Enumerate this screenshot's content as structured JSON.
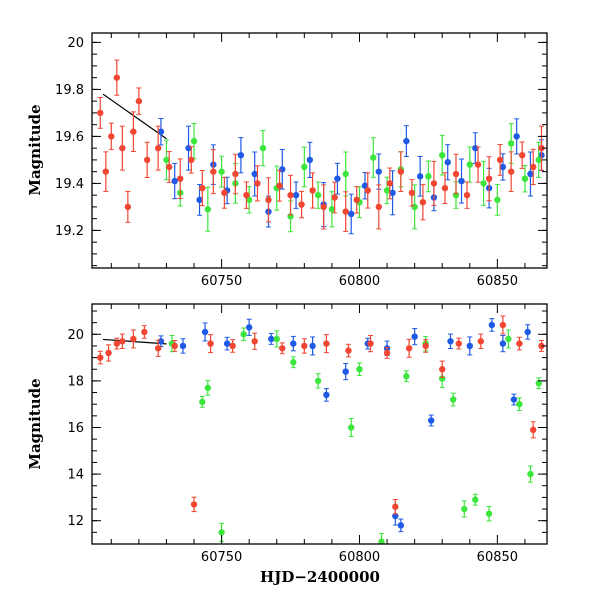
{
  "chart_data": [
    {
      "type": "scatter",
      "panel": "top",
      "title": "",
      "xlabel": "",
      "ylabel": "Magnitude",
      "xlim": [
        60703,
        60868
      ],
      "ylim": [
        20.04,
        19.04
      ],
      "y_inverted": true,
      "xticks": [
        60750,
        60800,
        60850
      ],
      "yticks": [
        19.2,
        19.4,
        19.6,
        19.8,
        20
      ],
      "ytick_labels": [
        "19.2",
        "19.4",
        "19.6",
        "19.8",
        "20"
      ],
      "error_bars": true,
      "grid": false,
      "series": [
        {
          "color": "#1e5ae6",
          "points": [
            [
              60728,
              19.62
            ],
            [
              60733,
              19.41
            ],
            [
              60738,
              19.55
            ],
            [
              60742,
              19.33
            ],
            [
              60747,
              19.48
            ],
            [
              60752,
              19.37
            ],
            [
              60757,
              19.52
            ],
            [
              60762,
              19.44
            ],
            [
              60767,
              19.28
            ],
            [
              60772,
              19.46
            ],
            [
              60777,
              19.35
            ],
            [
              60782,
              19.5
            ],
            [
              60787,
              19.31
            ],
            [
              60792,
              19.42
            ],
            [
              60797,
              19.27
            ],
            [
              60802,
              19.39
            ],
            [
              60807,
              19.45
            ],
            [
              60812,
              19.36
            ],
            [
              60817,
              19.58
            ],
            [
              60822,
              19.43
            ],
            [
              60827,
              19.34
            ],
            [
              60832,
              19.49
            ],
            [
              60837,
              19.41
            ],
            [
              60842,
              19.55
            ],
            [
              60847,
              19.38
            ],
            [
              60852,
              19.47
            ],
            [
              60857,
              19.6
            ],
            [
              60862,
              19.44
            ],
            [
              60866,
              19.52
            ]
          ]
        },
        {
          "color": "#3ce63c",
          "points": [
            [
              60730,
              19.5
            ],
            [
              60735,
              19.36
            ],
            [
              60740,
              19.58
            ],
            [
              60745,
              19.29
            ],
            [
              60750,
              19.45
            ],
            [
              60755,
              19.4
            ],
            [
              60760,
              19.33
            ],
            [
              60765,
              19.55
            ],
            [
              60770,
              19.38
            ],
            [
              60775,
              19.26
            ],
            [
              60780,
              19.47
            ],
            [
              60785,
              19.35
            ],
            [
              60790,
              19.29
            ],
            [
              60795,
              19.44
            ],
            [
              60800,
              19.32
            ],
            [
              60805,
              19.51
            ],
            [
              60810,
              19.37
            ],
            [
              60815,
              19.46
            ],
            [
              60820,
              19.3
            ],
            [
              60825,
              19.43
            ],
            [
              60830,
              19.52
            ],
            [
              60835,
              19.35
            ],
            [
              60840,
              19.48
            ],
            [
              60845,
              19.4
            ],
            [
              60850,
              19.33
            ],
            [
              60855,
              19.57
            ],
            [
              60860,
              19.42
            ],
            [
              60865,
              19.5
            ]
          ]
        },
        {
          "color": "#f04632",
          "points": [
            [
              60706,
              19.7
            ],
            [
              60708,
              19.45
            ],
            [
              60710,
              19.6
            ],
            [
              60712,
              19.85
            ],
            [
              60714,
              19.55
            ],
            [
              60716,
              19.3
            ],
            [
              60718,
              19.62
            ],
            [
              60720,
              19.75
            ],
            [
              60723,
              19.5
            ],
            [
              60727,
              19.55
            ],
            [
              60731,
              19.47
            ],
            [
              60735,
              19.42
            ],
            [
              60739,
              19.5
            ],
            [
              60743,
              19.38
            ],
            [
              60747,
              19.45
            ],
            [
              60751,
              19.36
            ],
            [
              60755,
              19.44
            ],
            [
              60759,
              19.35
            ],
            [
              60763,
              19.4
            ],
            [
              60767,
              19.33
            ],
            [
              60771,
              19.39
            ],
            [
              60775,
              19.35
            ],
            [
              60779,
              19.31
            ],
            [
              60783,
              19.37
            ],
            [
              60787,
              19.3
            ],
            [
              60791,
              19.34
            ],
            [
              60795,
              19.28
            ],
            [
              60799,
              19.33
            ],
            [
              60803,
              19.37
            ],
            [
              60807,
              19.3
            ],
            [
              60811,
              19.4
            ],
            [
              60815,
              19.45
            ],
            [
              60819,
              19.36
            ],
            [
              60823,
              19.32
            ],
            [
              60827,
              19.4
            ],
            [
              60831,
              19.38
            ],
            [
              60835,
              19.44
            ],
            [
              60839,
              19.35
            ],
            [
              60843,
              19.48
            ],
            [
              60847,
              19.42
            ],
            [
              60851,
              19.5
            ],
            [
              60855,
              19.45
            ],
            [
              60859,
              19.52
            ],
            [
              60863,
              19.47
            ],
            [
              60866,
              19.55
            ]
          ]
        }
      ],
      "trend_line": [
        [
          60707,
          19.78
        ],
        [
          60730,
          19.59
        ]
      ]
    },
    {
      "type": "scatter",
      "panel": "bottom",
      "title": "",
      "xlabel": "HJD−2400000",
      "ylabel": "Magnitude",
      "xlim": [
        60703,
        60868
      ],
      "ylim": [
        21.3,
        11.0
      ],
      "y_inverted": true,
      "xticks": [
        60750,
        60800,
        60850
      ],
      "yticks": [
        12,
        14,
        16,
        18,
        20
      ],
      "ytick_labels": [
        "12",
        "14",
        "16",
        "18",
        "20"
      ],
      "error_bars": true,
      "grid": false,
      "series": [
        {
          "color": "#1e5ae6",
          "points": [
            [
              60728,
              19.7
            ],
            [
              60736,
              19.5
            ],
            [
              60744,
              20.1
            ],
            [
              60752,
              19.6
            ],
            [
              60760,
              20.3
            ],
            [
              60768,
              19.8
            ],
            [
              60776,
              19.6
            ],
            [
              60783,
              19.5
            ],
            [
              60788,
              17.4
            ],
            [
              60795,
              18.4
            ],
            [
              60803,
              19.6
            ],
            [
              60810,
              19.4
            ],
            [
              60813,
              12.2
            ],
            [
              60815,
              11.8
            ],
            [
              60820,
              19.9
            ],
            [
              60826,
              16.3
            ],
            [
              60833,
              19.7
            ],
            [
              60840,
              19.5
            ],
            [
              60848,
              20.4
            ],
            [
              60852,
              19.6
            ],
            [
              60856,
              17.2
            ],
            [
              60861,
              20.1
            ]
          ]
        },
        {
          "color": "#3ce63c",
          "points": [
            [
              60732,
              19.6
            ],
            [
              60743,
              17.1
            ],
            [
              60745,
              17.7
            ],
            [
              60750,
              11.5
            ],
            [
              60758,
              20.0
            ],
            [
              60770,
              19.8
            ],
            [
              60776,
              18.8
            ],
            [
              60785,
              18.0
            ],
            [
              60797,
              16.0
            ],
            [
              60800,
              18.5
            ],
            [
              60808,
              11.1
            ],
            [
              60817,
              18.2
            ],
            [
              60824,
              19.6
            ],
            [
              60830,
              18.1
            ],
            [
              60834,
              17.2
            ],
            [
              60838,
              12.5
            ],
            [
              60842,
              12.9
            ],
            [
              60847,
              12.3
            ],
            [
              60854,
              19.8
            ],
            [
              60858,
              17.0
            ],
            [
              60862,
              14.0
            ],
            [
              60865,
              17.9
            ]
          ]
        },
        {
          "color": "#f04632",
          "points": [
            [
              60706,
              19.0
            ],
            [
              60709,
              19.2
            ],
            [
              60712,
              19.6
            ],
            [
              60714,
              19.7
            ],
            [
              60718,
              19.8
            ],
            [
              60722,
              20.1
            ],
            [
              60727,
              19.4
            ],
            [
              60733,
              19.5
            ],
            [
              60740,
              12.7
            ],
            [
              60746,
              19.6
            ],
            [
              60754,
              19.5
            ],
            [
              60762,
              19.7
            ],
            [
              60772,
              19.4
            ],
            [
              60780,
              19.5
            ],
            [
              60788,
              19.6
            ],
            [
              60796,
              19.3
            ],
            [
              60804,
              19.6
            ],
            [
              60810,
              19.2
            ],
            [
              60813,
              12.6
            ],
            [
              60818,
              19.4
            ],
            [
              60824,
              19.5
            ],
            [
              60830,
              18.5
            ],
            [
              60836,
              19.6
            ],
            [
              60844,
              19.7
            ],
            [
              60852,
              20.4
            ],
            [
              60858,
              19.6
            ],
            [
              60863,
              15.9
            ],
            [
              60866,
              19.5
            ]
          ]
        }
      ],
      "trend_line": [
        [
          60707,
          19.78
        ],
        [
          60730,
          19.59
        ]
      ]
    }
  ]
}
